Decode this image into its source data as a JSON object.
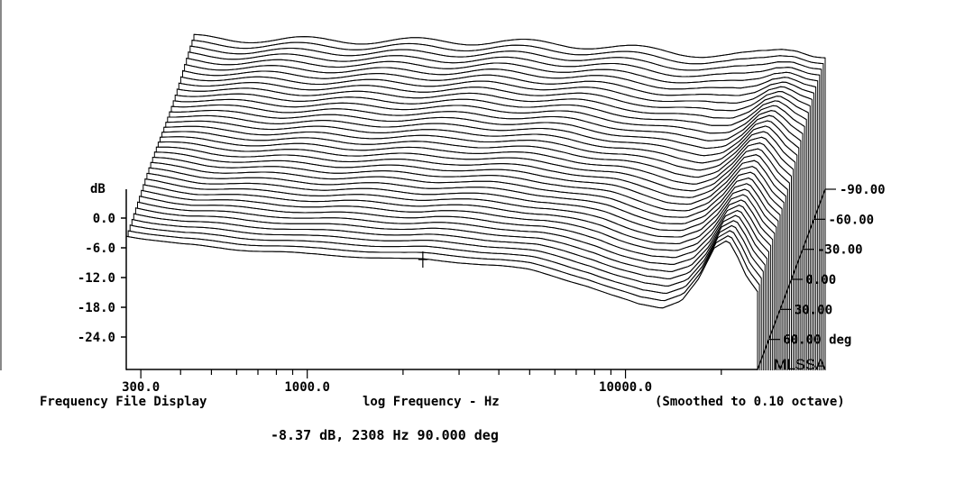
{
  "chart_data": {
    "type": "waterfall",
    "title": "",
    "xlabel": "log Frequency - Hz",
    "ylabel": "dB",
    "x_scale": "log",
    "xlim": [
      270,
      26000
    ],
    "ylim": [
      -27,
      3
    ],
    "x_tick_labels": [
      "300.0",
      "1000.0",
      "10000.0"
    ],
    "x_tick_values": [
      300,
      1000,
      10000
    ],
    "y_tick_labels": [
      "0.0",
      "-6.0",
      "-12.0",
      "-18.0",
      "-24.0"
    ],
    "y_tick_values": [
      0,
      -6,
      -12,
      -18,
      -24
    ],
    "z_label": "deg",
    "z_tick_labels": [
      "-90.00",
      "-60.00",
      "-30.00",
      "0.00",
      "30.00",
      "60.00 deg"
    ],
    "z_tick_values": [
      -90,
      -60,
      -30,
      0,
      30,
      60
    ],
    "z_range": [
      -90,
      90
    ],
    "z_step": 5,
    "series_shape_points": {
      "freq": [
        270,
        400,
        600,
        800,
        1000,
        1400,
        2000,
        2308,
        2600,
        3200,
        4000,
        5000,
        6000,
        7500,
        9000,
        11000,
        13000,
        15000,
        17000,
        19000,
        21000,
        22500,
        24000,
        26000
      ],
      "front_curve_db_at_90deg": [
        -3.5,
        -5.3,
        -6.3,
        -6.8,
        -7.3,
        -7.7,
        -8.3,
        -8.37,
        -8.6,
        -9.0,
        -9.6,
        -10.5,
        -11.8,
        -13.5,
        -15.5,
        -17.5,
        -18.2,
        -16.5,
        -12.0,
        -6.0,
        -4.5,
        -8.0,
        -12.0,
        -15.0
      ]
    },
    "readout": "-8.37 dB, 2308 Hz 90.000 deg",
    "readout_point": {
      "db": -8.37,
      "hz": 2308,
      "deg": 90.0
    }
  },
  "footer": {
    "left": "Frequency File Display",
    "center": "log Frequency - Hz",
    "right": "(Smoothed to 0.10 octave)"
  },
  "brand": "MLSSA"
}
